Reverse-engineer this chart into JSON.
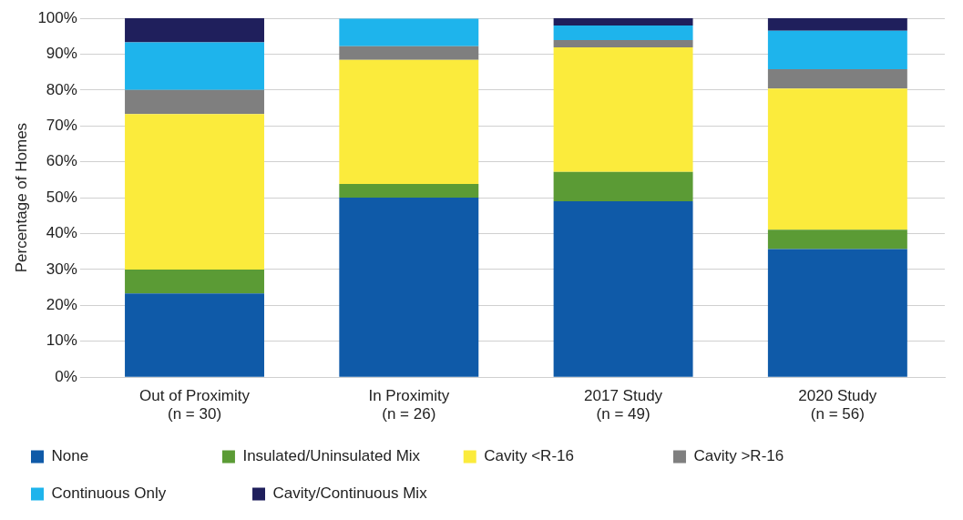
{
  "chart_data": {
    "type": "bar",
    "stacked": true,
    "ylabel": "Percentage of Homes",
    "categories": [
      "Out of Proximity\n(n = 30)",
      "In Proximity\n(n = 26)",
      "2017 Study\n(n = 49)",
      "2020 Study\n(n = 56)"
    ],
    "series": [
      {
        "name": "None",
        "color": "#0f5aa8",
        "values": [
          23.3,
          50.0,
          49.0,
          35.7
        ]
      },
      {
        "name": "Insulated/Uninsulated Mix",
        "color": "#5b9b35",
        "values": [
          6.7,
          3.8,
          8.2,
          5.4
        ]
      },
      {
        "name": "Cavity <R-16",
        "color": "#fbeb3c",
        "values": [
          43.3,
          34.6,
          34.7,
          39.3
        ]
      },
      {
        "name": "Cavity >R-16",
        "color": "#7f7f7f",
        "values": [
          6.7,
          3.8,
          2.0,
          5.4
        ]
      },
      {
        "name": "Continuous Only",
        "color": "#1eb4ec",
        "values": [
          13.3,
          7.7,
          4.1,
          10.7
        ]
      },
      {
        "name": "Cavity/Continuous Mix",
        "color": "#1f1f5c",
        "values": [
          6.7,
          0,
          2.0,
          3.6
        ]
      }
    ],
    "ylim": [
      0,
      100
    ],
    "yticks": [
      {
        "value": 0,
        "label": "0%"
      },
      {
        "value": 10,
        "label": "10%"
      },
      {
        "value": 20,
        "label": "20%"
      },
      {
        "value": 30,
        "label": "30%"
      },
      {
        "value": 40,
        "label": "40%"
      },
      {
        "value": 50,
        "label": "50%"
      },
      {
        "value": 60,
        "label": "60%"
      },
      {
        "value": 70,
        "label": "70%"
      },
      {
        "value": 80,
        "label": "80%"
      },
      {
        "value": 90,
        "label": "90%"
      },
      {
        "value": 100,
        "label": "100%"
      }
    ],
    "grid": "y",
    "legend": "bottom"
  }
}
